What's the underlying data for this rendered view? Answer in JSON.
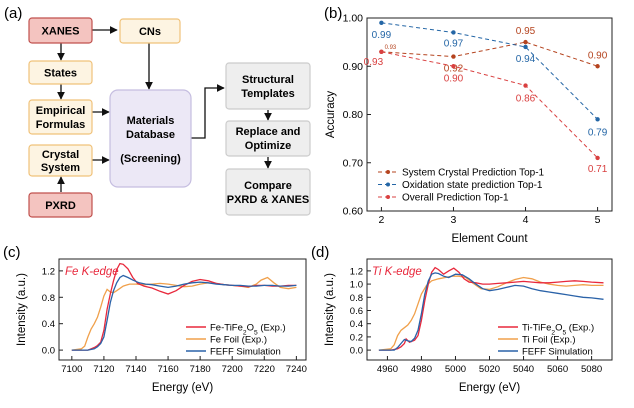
{
  "panel_a": {
    "label": "(a)",
    "boxes": {
      "xanes": "XANES",
      "cns": "CNs",
      "states": "States",
      "empirical": [
        "Empirical",
        "Formulas"
      ],
      "crystal": [
        "Crystal",
        "System"
      ],
      "pxrd": "PXRD",
      "database": [
        "Materials",
        "Database",
        "(Screening)"
      ],
      "templates": [
        "Structural",
        "Templates"
      ],
      "replace": [
        "Replace and",
        "Optimize"
      ],
      "compare": [
        "Compare",
        "PXRD & XANES"
      ]
    }
  },
  "chart_data": [
    {
      "panel": "(b)",
      "type": "line",
      "xlabel": "Element Count",
      "ylabel": "Accuracy",
      "xlim": [
        1.8,
        5.2
      ],
      "ylim": [
        0.6,
        1.0
      ],
      "x_ticks": [
        "2",
        "3",
        "4",
        "5"
      ],
      "y_ticks": [
        "0.60",
        "0.70",
        "0.80",
        "0.90",
        "1.00"
      ],
      "legend_position": "bottom-left",
      "x": [
        2,
        3,
        4,
        5
      ],
      "series": [
        {
          "name": "System Crystal Prediction Top-1",
          "color": "#b5441f",
          "values": [
            0.93,
            0.92,
            0.95,
            0.9
          ],
          "labels": [
            "0.93",
            "0.92",
            "0.95",
            "0.90"
          ]
        },
        {
          "name": "Oxidation state prediction Top-1",
          "color": "#2466a6",
          "values": [
            0.99,
            0.97,
            0.94,
            0.79
          ],
          "labels": [
            "0.99",
            "0.97",
            "0.94",
            "0.79"
          ]
        },
        {
          "name": "Overall Prediction Top-1",
          "color": "#d94040",
          "values": [
            0.93,
            0.9,
            0.86,
            0.71
          ],
          "labels": [
            "0.93",
            "0.90",
            "0.86",
            "0.71"
          ]
        }
      ]
    },
    {
      "panel": "(c)",
      "type": "line",
      "annotation": "Fe K-edge",
      "xlabel": "Energy (eV)",
      "ylabel": "Intensity (a.u.)",
      "xlim": [
        7092,
        7246
      ],
      "ylim": [
        -0.15,
        1.38
      ],
      "x_ticks": [
        "7100",
        "7120",
        "7140",
        "7160",
        "7180",
        "7200",
        "7220",
        "7240"
      ],
      "y_ticks": [
        "0.0",
        "0.4",
        "0.8",
        "1.2"
      ],
      "legend_position": "bottom-right",
      "series": [
        {
          "name": "Fe-TiFe2O5 (Exp.)",
          "color": "#e8283c",
          "x": [
            7100,
            7110,
            7112,
            7114,
            7116,
            7118,
            7120,
            7122,
            7124,
            7126,
            7128,
            7130,
            7132,
            7135,
            7138,
            7141,
            7145,
            7150,
            7155,
            7160,
            7165,
            7170,
            7175,
            7180,
            7185,
            7190,
            7195,
            7200,
            7205,
            7210,
            7215,
            7220,
            7225,
            7230,
            7235,
            7240
          ],
          "y": [
            0.0,
            0.0,
            0.02,
            0.04,
            0.07,
            0.12,
            0.3,
            0.62,
            0.85,
            1.05,
            1.22,
            1.31,
            1.3,
            1.23,
            1.1,
            1.01,
            0.97,
            0.94,
            0.89,
            0.85,
            0.9,
            0.98,
            1.04,
            1.07,
            1.05,
            1.01,
            0.99,
            0.98,
            0.97,
            0.96,
            0.98,
            0.98,
            0.97,
            0.97,
            0.98,
            0.98
          ]
        },
        {
          "name": "Fe Foil (Exp.)",
          "color": "#f0a04b",
          "x": [
            7100,
            7106,
            7108,
            7110,
            7112,
            7114,
            7116,
            7118,
            7120,
            7122,
            7124,
            7126,
            7128,
            7132,
            7136,
            7140,
            7145,
            7150,
            7155,
            7160,
            7165,
            7170,
            7175,
            7180,
            7185,
            7190,
            7195,
            7200,
            7205,
            7210,
            7215,
            7218,
            7222,
            7226,
            7230,
            7235,
            7240
          ],
          "y": [
            0.0,
            0.02,
            0.06,
            0.2,
            0.32,
            0.4,
            0.5,
            0.65,
            0.82,
            0.92,
            0.88,
            0.87,
            0.9,
            0.97,
            1.0,
            1.0,
            0.99,
            1.0,
            1.01,
            1.0,
            0.98,
            0.96,
            0.97,
            1.0,
            1.02,
            1.01,
            0.99,
            0.98,
            0.97,
            0.95,
            1.0,
            1.06,
            1.1,
            1.02,
            0.95,
            0.93,
            0.95
          ]
        },
        {
          "name": "FEFF Simulation",
          "color": "#2a62a8",
          "x": [
            7100,
            7110,
            7114,
            7116,
            7118,
            7120,
            7122,
            7124,
            7126,
            7128,
            7130,
            7132,
            7135,
            7138,
            7142,
            7146,
            7150,
            7155,
            7160,
            7165,
            7170,
            7175,
            7180,
            7185,
            7190,
            7195,
            7200,
            7205,
            7210,
            7215,
            7220,
            7225,
            7230,
            7235,
            7240
          ],
          "y": [
            0.0,
            0.0,
            0.02,
            0.05,
            0.1,
            0.2,
            0.45,
            0.72,
            0.9,
            1.02,
            1.1,
            1.13,
            1.1,
            1.06,
            1.02,
            1.0,
            0.99,
            0.97,
            0.95,
            0.97,
            1.0,
            1.02,
            1.03,
            1.02,
            1.0,
            0.99,
            0.98,
            0.98,
            0.97,
            0.97,
            0.98,
            0.98,
            0.97,
            0.97,
            0.98
          ]
        }
      ]
    },
    {
      "panel": "(d)",
      "type": "line",
      "annotation": "Ti K-edge",
      "xlabel": "Energy (eV)",
      "ylabel": "Intensity (a.u.)",
      "xlim": [
        4948,
        5092
      ],
      "ylim": [
        -0.15,
        1.38
      ],
      "x_ticks": [
        "4960",
        "4980",
        "5000",
        "5020",
        "5040",
        "5060",
        "5080"
      ],
      "y_ticks": [
        "0.0",
        "0.2",
        "0.4",
        "0.6",
        "0.8",
        "1.0",
        "1.2"
      ],
      "legend_position": "bottom-right",
      "series": [
        {
          "name": "Ti-TiFe2O5 (Exp.)",
          "color": "#e8283c",
          "x": [
            4955,
            4962,
            4966,
            4968,
            4970,
            4971,
            4973,
            4976,
            4978,
            4980,
            4982,
            4984,
            4986,
            4988,
            4990,
            4993,
            4996,
            4999,
            5002,
            5005,
            5008,
            5012,
            5016,
            5020,
            5025,
            5030,
            5035,
            5040,
            5045,
            5050,
            5055,
            5060,
            5065,
            5070,
            5075,
            5080,
            5087
          ],
          "y": [
            0.0,
            0.0,
            0.02,
            0.05,
            0.1,
            0.17,
            0.12,
            0.15,
            0.22,
            0.45,
            0.75,
            1.0,
            1.18,
            1.25,
            1.22,
            1.15,
            1.2,
            1.24,
            1.18,
            1.08,
            1.03,
            1.02,
            1.0,
            1.0,
            1.01,
            1.02,
            1.03,
            1.04,
            1.03,
            1.02,
            1.02,
            1.03,
            1.04,
            1.05,
            1.04,
            1.03,
            1.02
          ]
        },
        {
          "name": "Ti Foil (Exp.)",
          "color": "#f0a04b",
          "x": [
            4955,
            4962,
            4964,
            4966,
            4968,
            4970,
            4972,
            4974,
            4976,
            4978,
            4980,
            4983,
            4986,
            4990,
            4994,
            4998,
            5002,
            5006,
            5010,
            5015,
            5020,
            5025,
            5030,
            5035,
            5040,
            5045,
            5050,
            5055,
            5060,
            5065,
            5070,
            5075,
            5080,
            5087
          ],
          "y": [
            0.0,
            0.02,
            0.08,
            0.22,
            0.3,
            0.34,
            0.38,
            0.45,
            0.55,
            0.7,
            0.85,
            0.98,
            1.05,
            1.08,
            1.1,
            1.12,
            1.12,
            1.1,
            1.02,
            0.93,
            0.92,
            0.96,
            1.02,
            1.07,
            1.1,
            1.08,
            1.03,
            1.0,
            0.98,
            0.97,
            0.98,
            0.99,
            0.98,
            0.98
          ]
        },
        {
          "name": "FEFF Simulation",
          "color": "#2a62a8",
          "x": [
            4955,
            4964,
            4966,
            4968,
            4970,
            4972,
            4974,
            4976,
            4978,
            4980,
            4982,
            4984,
            4986,
            4988,
            4990,
            4993,
            4996,
            5000,
            5004,
            5008,
            5012,
            5016,
            5020,
            5025,
            5030,
            5035,
            5040,
            5045,
            5050,
            5055,
            5060,
            5065,
            5070,
            5075,
            5080,
            5087
          ],
          "y": [
            0.0,
            0.0,
            0.04,
            0.1,
            0.16,
            0.14,
            0.13,
            0.18,
            0.3,
            0.55,
            0.85,
            1.05,
            1.15,
            1.17,
            1.16,
            1.12,
            1.1,
            1.15,
            1.14,
            1.08,
            1.0,
            0.93,
            0.9,
            0.92,
            0.95,
            0.98,
            0.97,
            0.93,
            0.9,
            0.88,
            0.86,
            0.84,
            0.82,
            0.8,
            0.79,
            0.77
          ]
        }
      ]
    }
  ]
}
